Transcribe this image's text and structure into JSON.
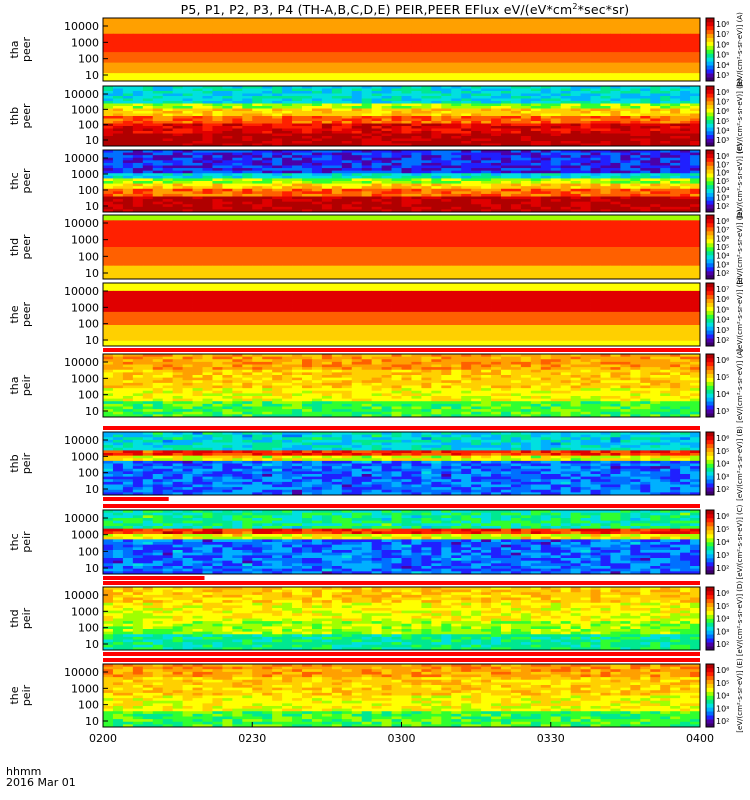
{
  "title": "P5, P1, P2, P3, P4 (TH-A,B,C,D,E) PEIR,PEER EFlux eV/(eV*cm",
  "title_sup": "2",
  "title_tail": "*sec*sr)",
  "time_label": "hhmm",
  "date_label": "2016 Mar 01",
  "colors": {
    "palette": [
      "#3b006b",
      "#4b00a8",
      "#2020ff",
      "#0070ff",
      "#00b0ff",
      "#00e0e0",
      "#00e890",
      "#30ff30",
      "#a0ff00",
      "#ffff00",
      "#ffd000",
      "#ffa000",
      "#ff6000",
      "#ff2000",
      "#e00000",
      "#b00000"
    ],
    "flag_red": "#ff0000"
  },
  "chart_data": {
    "type": "heatmap",
    "xlim": [
      "0200",
      "0400"
    ],
    "x_ticks": [
      "0200",
      "0230",
      "0300",
      "0330",
      "0400"
    ],
    "y_ticks": [
      "10000",
      "1000",
      "100",
      "10"
    ],
    "y_scale": "log",
    "panels": [
      {
        "id": "tha-peer",
        "label_line1": "tha",
        "label_line2": "peer",
        "colorbar_ticks": [
          "10⁸",
          "10⁷",
          "10⁶",
          "10⁵",
          "10⁴",
          "10³"
        ],
        "colorbar_label": "[eV/(cm²-s-sr-eV)] (A)",
        "bands": [
          [
            0,
            0.25,
            11
          ],
          [
            0.25,
            0.55,
            13
          ],
          [
            0.55,
            0.7,
            12
          ],
          [
            0.7,
            0.88,
            11
          ],
          [
            0.88,
            1,
            9
          ]
        ],
        "noise": 0.15,
        "flags": []
      },
      {
        "id": "thb-peer",
        "label_line1": "thb",
        "label_line2": "peer",
        "colorbar_ticks": [
          "10⁸",
          "10⁷",
          "10⁶",
          "10⁵",
          "10⁴",
          "10³"
        ],
        "colorbar_label": "[eV/(cm²-s-sr-eV)] (B)",
        "bands": [
          [
            0,
            0.28,
            5
          ],
          [
            0.28,
            0.38,
            8
          ],
          [
            0.38,
            0.48,
            10
          ],
          [
            0.48,
            0.62,
            12
          ],
          [
            0.62,
            0.78,
            14
          ],
          [
            0.78,
            1,
            15
          ]
        ],
        "noise": 0.5,
        "flags": []
      },
      {
        "id": "thc-peer",
        "label_line1": "thc",
        "label_line2": "peer",
        "colorbar_ticks": [
          "10⁸",
          "10⁷",
          "10⁶",
          "10⁵",
          "10⁴",
          "10³",
          "10²"
        ],
        "colorbar_label": "[eV/(cm²-s-sr-eV)] (C)",
        "bands": [
          [
            0,
            0.38,
            2
          ],
          [
            0.38,
            0.46,
            5
          ],
          [
            0.46,
            0.54,
            8
          ],
          [
            0.54,
            0.62,
            10
          ],
          [
            0.62,
            0.75,
            12
          ],
          [
            0.75,
            1,
            15
          ]
        ],
        "noise": 0.6,
        "flags": []
      },
      {
        "id": "thd-peer",
        "label_line1": "thd",
        "label_line2": "peer",
        "colorbar_ticks": [
          "10⁸",
          "10⁷",
          "10⁶",
          "10⁵",
          "10⁴",
          "10³",
          "10²"
        ],
        "colorbar_label": "[eV/(cm²-s-sr-eV)] (D)",
        "bands": [
          [
            0,
            0.08,
            8
          ],
          [
            0.08,
            0.5,
            13
          ],
          [
            0.5,
            0.8,
            12
          ],
          [
            0.8,
            1,
            10
          ]
        ],
        "noise": 0.15,
        "flags": []
      },
      {
        "id": "the-peer",
        "label_line1": "the",
        "label_line2": "peer",
        "colorbar_ticks": [
          "10⁷",
          "10⁶",
          "10⁵",
          "10⁴",
          "10³",
          "10²"
        ],
        "colorbar_label": "[eV/(cm²-s-sr-eV)] (E)",
        "bands": [
          [
            0,
            0.12,
            9
          ],
          [
            0.12,
            0.45,
            14
          ],
          [
            0.45,
            0.65,
            12
          ],
          [
            0.65,
            0.9,
            10
          ],
          [
            0.9,
            1,
            9
          ]
        ],
        "noise": 0.15,
        "flags": []
      },
      {
        "id": "tha-peir",
        "label_line1": "tha",
        "label_line2": "peir",
        "colorbar_ticks": [
          "10⁶",
          "10⁵",
          "10⁴",
          "10³"
        ],
        "colorbar_label": "[eV/(cm²-s-sr-eV)] (A)",
        "bands": [
          [
            0,
            0.25,
            11
          ],
          [
            0.25,
            0.55,
            10
          ],
          [
            0.55,
            0.75,
            9
          ],
          [
            0.75,
            1,
            7
          ]
        ],
        "noise": 0.45,
        "flags": [
          [
            0,
            1,
            "top"
          ]
        ]
      },
      {
        "id": "thb-peir",
        "label_line1": "thb",
        "label_line2": "peir",
        "colorbar_ticks": [
          "10⁶",
          "10⁵",
          "10⁴",
          "10³",
          "10²"
        ],
        "colorbar_label": "[eV/(cm²-s-sr-eV)] (B)",
        "bands": [
          [
            0,
            0.3,
            5
          ],
          [
            0.3,
            0.36,
            13
          ],
          [
            0.36,
            0.44,
            9
          ],
          [
            0.44,
            1,
            3
          ]
        ],
        "noise": 0.7,
        "flags": [
          [
            0,
            1,
            "top"
          ],
          [
            0,
            0.11,
            "bottom"
          ]
        ]
      },
      {
        "id": "thc-peir",
        "label_line1": "thc",
        "label_line2": "peir",
        "colorbar_ticks": [
          "10⁶",
          "10⁵",
          "10⁴",
          "10³",
          "10²"
        ],
        "colorbar_label": "[eV/(cm²-s-sr-eV)] (C)",
        "bands": [
          [
            0,
            0.3,
            6
          ],
          [
            0.3,
            0.36,
            13
          ],
          [
            0.36,
            0.44,
            9
          ],
          [
            0.44,
            1,
            3
          ]
        ],
        "noise": 0.7,
        "flags": [
          [
            0,
            1,
            "top"
          ],
          [
            0,
            0.17,
            "bottom"
          ]
        ]
      },
      {
        "id": "thd-peir",
        "label_line1": "thd",
        "label_line2": "peir",
        "colorbar_ticks": [
          "10⁶",
          "10⁵",
          "10⁴",
          "10³",
          "10²"
        ],
        "colorbar_label": "[eV/(cm²-s-sr-eV)] (D)",
        "bands": [
          [
            0,
            0.25,
            10
          ],
          [
            0.25,
            0.55,
            9
          ],
          [
            0.55,
            0.75,
            8
          ],
          [
            0.75,
            1,
            6
          ]
        ],
        "noise": 0.5,
        "flags": [
          [
            0,
            1,
            "top"
          ],
          [
            0,
            1,
            "bottom"
          ]
        ]
      },
      {
        "id": "the-peir",
        "label_line1": "the",
        "label_line2": "peir",
        "colorbar_ticks": [
          "10⁶",
          "10⁵",
          "10⁴",
          "10³",
          "10²"
        ],
        "colorbar_label": "[eV/(cm²-s-sr-eV)] (E)",
        "bands": [
          [
            0,
            0.2,
            11
          ],
          [
            0.2,
            0.5,
            10
          ],
          [
            0.5,
            0.75,
            9
          ],
          [
            0.75,
            1,
            7
          ]
        ],
        "noise": 0.45,
        "flags": [
          [
            0,
            1,
            "top"
          ]
        ]
      }
    ]
  }
}
